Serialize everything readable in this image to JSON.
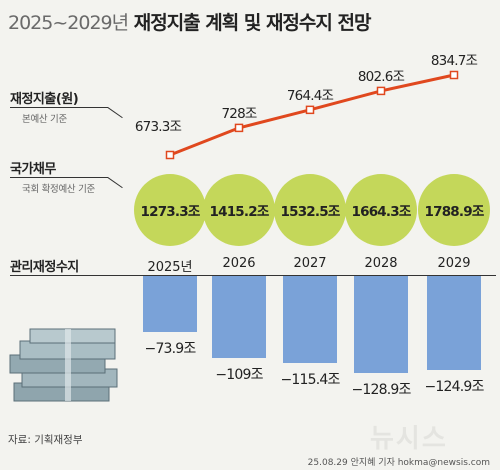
{
  "title_years": "2025~2029년",
  "title_main": "재정지출 계획 및 재정수지 전망",
  "sections": {
    "spending": {
      "label": "재정지출(원)",
      "sub": "본예산 기준"
    },
    "debt": {
      "label": "국가채무",
      "sub": "국회 확정예산 기준"
    },
    "balance": {
      "label": "관리재정수지"
    }
  },
  "source": "자료: 기획재정부",
  "credit": "25.08.29 안지혜 기자 hokma@newsis.com",
  "logo": "뉴시스",
  "colors": {
    "line": "#e0481e",
    "debt_circle": "#c4d75a",
    "bar": "#7aa2d8"
  },
  "chart_data": [
    {
      "type": "line",
      "name": "재정지출",
      "x": [
        "2025년",
        "2026",
        "2027",
        "2028",
        "2029"
      ],
      "values": [
        673.3,
        728,
        764.4,
        802.6,
        834.7
      ],
      "labels": [
        "673.3조",
        "728조",
        "764.4조",
        "802.6조",
        "834.7조"
      ]
    },
    {
      "type": "bubble",
      "name": "국가채무",
      "x": [
        "2025년",
        "2026",
        "2027",
        "2028",
        "2029"
      ],
      "values": [
        1273.3,
        1415.2,
        1532.5,
        1664.3,
        1788.9
      ],
      "labels": [
        "1273.3조",
        "1415.2조",
        "1532.5조",
        "1664.3조",
        "1788.9조"
      ]
    },
    {
      "type": "bar",
      "name": "관리재정수지",
      "categories": [
        "2025년",
        "2026",
        "2027",
        "2028",
        "2029"
      ],
      "values": [
        -73.9,
        -109,
        -115.4,
        -128.9,
        -124.9
      ],
      "labels": [
        "−73.9조",
        "−109조",
        "−115.4조",
        "−128.9조",
        "−124.9조"
      ]
    }
  ]
}
